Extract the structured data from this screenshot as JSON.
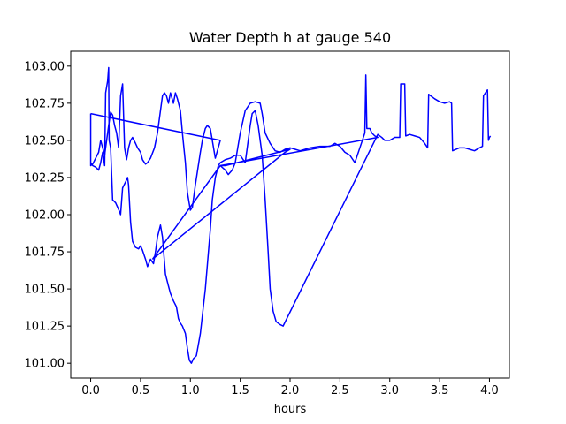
{
  "chart_data": {
    "type": "line",
    "title": "Water Depth h at gauge 540",
    "xlabel": "hours",
    "ylabel": "",
    "xlim": [
      -0.2,
      4.2
    ],
    "ylim": [
      100.9,
      103.1
    ],
    "xticks": [
      0.0,
      0.5,
      1.0,
      1.5,
      2.0,
      2.5,
      3.0,
      3.5,
      4.0
    ],
    "xtick_labels": [
      "0.0",
      "0.5",
      "1.0",
      "1.5",
      "2.0",
      "2.5",
      "3.0",
      "3.5",
      "4.0"
    ],
    "yticks": [
      101.0,
      101.25,
      101.5,
      101.75,
      102.0,
      102.25,
      102.5,
      102.75,
      103.0
    ],
    "ytick_labels": [
      "101.00",
      "101.25",
      "101.50",
      "101.75",
      "102.00",
      "102.25",
      "102.50",
      "102.75",
      "103.00"
    ],
    "grid": false,
    "line_color": "#0000ff",
    "series": [
      {
        "name": "",
        "points": [
          [
            0.0,
            102.35
          ],
          [
            0.02,
            102.33
          ],
          [
            0.05,
            102.32
          ],
          [
            0.08,
            102.3
          ],
          [
            0.1,
            102.35
          ],
          [
            0.12,
            102.42
          ],
          [
            0.13,
            102.38
          ],
          [
            0.14,
            102.33
          ],
          [
            0.15,
            102.82
          ],
          [
            0.17,
            102.9
          ],
          [
            0.18,
            102.99
          ],
          [
            0.185,
            102.5
          ],
          [
            0.2,
            102.45
          ],
          [
            0.22,
            102.1
          ],
          [
            0.25,
            102.08
          ],
          [
            0.27,
            102.05
          ],
          [
            0.29,
            102.02
          ],
          [
            0.3,
            102.0
          ],
          [
            0.32,
            102.18
          ],
          [
            0.35,
            102.22
          ],
          [
            0.37,
            102.25
          ],
          [
            0.38,
            102.2
          ],
          [
            0.4,
            101.95
          ],
          [
            0.42,
            101.82
          ],
          [
            0.45,
            101.78
          ],
          [
            0.48,
            101.77
          ],
          [
            0.5,
            101.79
          ],
          [
            0.52,
            101.76
          ],
          [
            0.55,
            101.7
          ],
          [
            0.57,
            101.65
          ],
          [
            0.6,
            101.7
          ],
          [
            0.63,
            101.67
          ],
          [
            0.65,
            101.75
          ],
          [
            0.67,
            101.85
          ],
          [
            0.7,
            101.93
          ],
          [
            0.72,
            101.85
          ],
          [
            0.75,
            101.6
          ],
          [
            0.78,
            101.52
          ],
          [
            0.8,
            101.47
          ],
          [
            0.83,
            101.42
          ],
          [
            0.86,
            101.38
          ],
          [
            0.88,
            101.3
          ],
          [
            0.9,
            101.27
          ],
          [
            0.92,
            101.25
          ],
          [
            0.95,
            101.2
          ],
          [
            0.97,
            101.1
          ],
          [
            0.99,
            101.02
          ],
          [
            1.01,
            101.0
          ],
          [
            1.03,
            101.03
          ],
          [
            1.06,
            101.05
          ],
          [
            1.1,
            101.2
          ],
          [
            1.15,
            101.5
          ],
          [
            1.2,
            101.9
          ],
          [
            1.22,
            102.1
          ],
          [
            1.25,
            102.25
          ],
          [
            1.28,
            102.33
          ],
          [
            1.3,
            102.35
          ],
          [
            1.35,
            102.37
          ],
          [
            1.4,
            102.38
          ],
          [
            1.45,
            102.4
          ],
          [
            1.5,
            102.4
          ],
          [
            1.55,
            102.35
          ],
          [
            1.6,
            102.6
          ],
          [
            1.62,
            102.68
          ],
          [
            1.65,
            102.7
          ],
          [
            1.68,
            102.6
          ],
          [
            1.72,
            102.4
          ],
          [
            1.75,
            102.1
          ],
          [
            1.78,
            101.75
          ],
          [
            1.8,
            101.5
          ],
          [
            1.83,
            101.35
          ],
          [
            1.86,
            101.28
          ],
          [
            1.9,
            101.26
          ],
          [
            1.93,
            101.25
          ],
          [
            2.88,
            102.54
          ],
          [
            2.92,
            102.52
          ],
          [
            2.95,
            102.5
          ],
          [
            3.0,
            102.5
          ],
          [
            3.05,
            102.52
          ],
          [
            3.1,
            102.52
          ],
          [
            3.11,
            102.88
          ],
          [
            3.15,
            102.88
          ],
          [
            3.16,
            102.53
          ],
          [
            3.2,
            102.54
          ],
          [
            3.25,
            102.53
          ],
          [
            3.3,
            102.52
          ],
          [
            3.35,
            102.48
          ],
          [
            3.38,
            102.45
          ],
          [
            3.39,
            102.81
          ],
          [
            3.45,
            102.78
          ],
          [
            3.5,
            102.76
          ],
          [
            3.55,
            102.75
          ],
          [
            3.6,
            102.76
          ],
          [
            3.62,
            102.75
          ],
          [
            3.63,
            102.43
          ],
          [
            3.7,
            102.45
          ],
          [
            3.75,
            102.45
          ],
          [
            3.8,
            102.44
          ],
          [
            3.85,
            102.43
          ],
          [
            3.9,
            102.45
          ],
          [
            3.93,
            102.46
          ],
          [
            3.94,
            102.8
          ],
          [
            3.97,
            102.83
          ],
          [
            3.98,
            102.84
          ],
          [
            3.99,
            102.5
          ],
          [
            4.0,
            102.52
          ],
          [
            4.01,
            102.53
          ]
        ]
      },
      {
        "name": "",
        "points": [
          [
            0.0,
            102.68
          ],
          [
            1.3,
            102.5
          ],
          [
            1.25,
            102.38
          ],
          [
            1.2,
            102.58
          ],
          [
            1.17,
            102.6
          ],
          [
            1.15,
            102.58
          ],
          [
            1.12,
            102.5
          ],
          [
            1.1,
            102.42
          ],
          [
            1.05,
            102.2
          ],
          [
            1.02,
            102.05
          ],
          [
            1.0,
            102.03
          ],
          [
            0.97,
            102.15
          ],
          [
            0.95,
            102.35
          ],
          [
            0.92,
            102.55
          ],
          [
            0.9,
            102.7
          ],
          [
            0.87,
            102.78
          ],
          [
            0.85,
            102.82
          ],
          [
            0.83,
            102.75
          ],
          [
            0.8,
            102.82
          ],
          [
            0.78,
            102.75
          ],
          [
            0.76,
            102.8
          ],
          [
            0.74,
            102.82
          ],
          [
            0.72,
            102.8
          ],
          [
            0.7,
            102.7
          ],
          [
            0.67,
            102.55
          ],
          [
            0.64,
            102.45
          ],
          [
            0.6,
            102.38
          ],
          [
            0.57,
            102.35
          ],
          [
            0.55,
            102.34
          ],
          [
            0.52,
            102.37
          ],
          [
            0.5,
            102.42
          ],
          [
            0.47,
            102.45
          ],
          [
            0.45,
            102.48
          ],
          [
            0.42,
            102.52
          ],
          [
            0.4,
            102.5
          ],
          [
            0.38,
            102.45
          ],
          [
            0.36,
            102.37
          ],
          [
            0.34,
            102.45
          ],
          [
            0.32,
            102.88
          ],
          [
            0.3,
            102.8
          ],
          [
            0.28,
            102.45
          ],
          [
            0.26,
            102.55
          ],
          [
            0.24,
            102.6
          ],
          [
            0.22,
            102.67
          ],
          [
            0.2,
            102.69
          ],
          [
            0.18,
            102.6
          ],
          [
            0.16,
            102.5
          ],
          [
            0.15,
            102.45
          ],
          [
            0.14,
            102.4
          ],
          [
            0.12,
            102.45
          ],
          [
            0.1,
            102.5
          ],
          [
            0.08,
            102.42
          ],
          [
            0.05,
            102.38
          ],
          [
            0.02,
            102.34
          ],
          [
            0.0,
            102.33
          ],
          [
            0.0,
            102.68
          ]
        ]
      },
      {
        "name": "",
        "points": [
          [
            0.62,
            101.7
          ],
          [
            1.3,
            102.33
          ],
          [
            1.35,
            102.3
          ],
          [
            1.38,
            102.27
          ],
          [
            1.42,
            102.3
          ],
          [
            1.45,
            102.35
          ],
          [
            1.5,
            102.55
          ],
          [
            1.55,
            102.7
          ],
          [
            1.6,
            102.75
          ],
          [
            1.65,
            102.76
          ],
          [
            1.7,
            102.75
          ],
          [
            1.72,
            102.68
          ],
          [
            1.75,
            102.55
          ],
          [
            1.8,
            102.48
          ],
          [
            1.85,
            102.43
          ],
          [
            1.9,
            102.42
          ],
          [
            1.95,
            102.44
          ],
          [
            2.0,
            102.45
          ],
          [
            2.05,
            102.44
          ],
          [
            2.1,
            102.43
          ],
          [
            2.2,
            102.45
          ],
          [
            2.3,
            102.46
          ],
          [
            2.4,
            102.46
          ],
          [
            2.45,
            102.48
          ],
          [
            2.5,
            102.46
          ],
          [
            2.55,
            102.42
          ],
          [
            2.6,
            102.4
          ],
          [
            2.65,
            102.35
          ],
          [
            2.7,
            102.45
          ],
          [
            2.75,
            102.55
          ],
          [
            2.76,
            102.94
          ],
          [
            2.77,
            102.58
          ],
          [
            2.8,
            102.58
          ],
          [
            2.82,
            102.55
          ],
          [
            2.85,
            102.53
          ],
          [
            2.88,
            102.52
          ],
          [
            1.3,
            102.33
          ],
          [
            1.35,
            102.33
          ],
          [
            2.0,
            102.44
          ],
          [
            1.95,
            102.42
          ],
          [
            0.62,
            101.7
          ]
        ]
      }
    ]
  }
}
